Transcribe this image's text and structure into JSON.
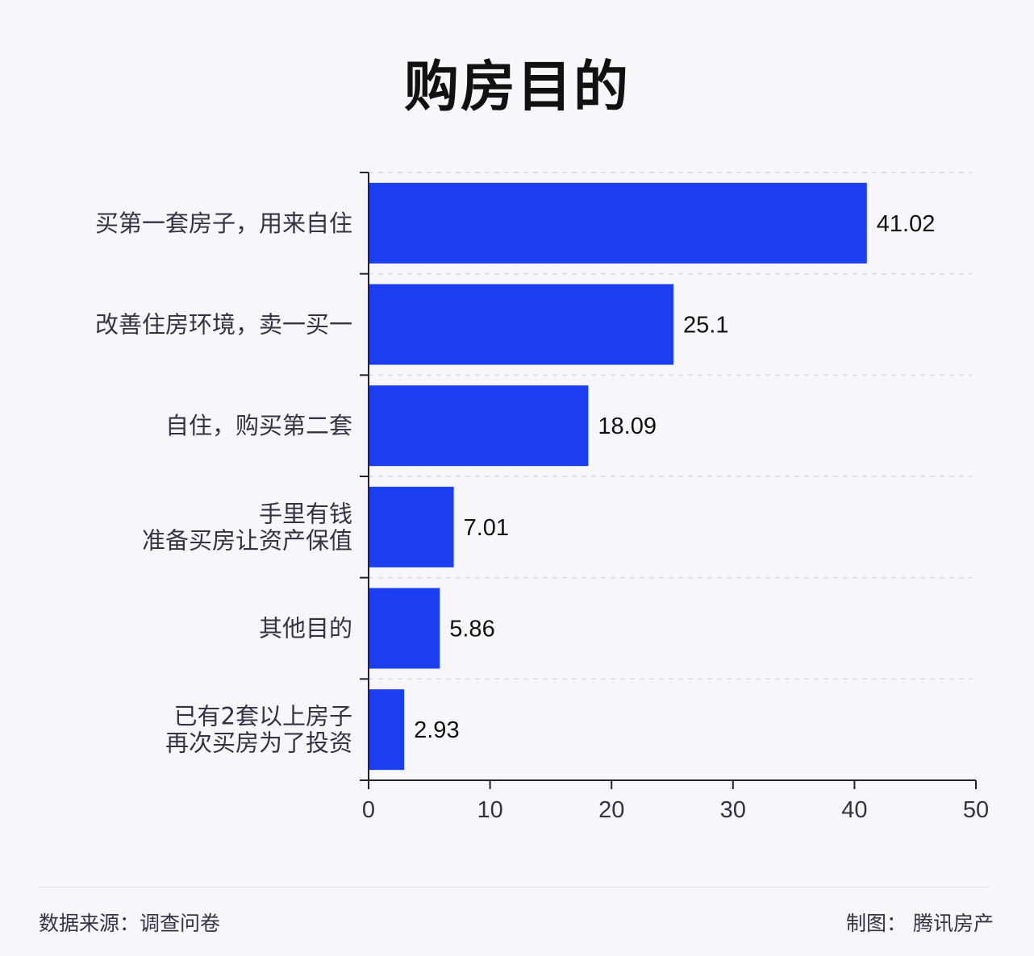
{
  "chart_data": {
    "type": "bar",
    "orientation": "horizontal",
    "title": "购房目的",
    "categories": [
      [
        "买第一套房子，用来自住"
      ],
      [
        "改善住房环境，卖一买一"
      ],
      [
        "自住，购买第二套"
      ],
      [
        "手里有钱",
        "准备买房让资产保值"
      ],
      [
        "其他目的"
      ],
      [
        "已有2套以上房子",
        "再次买房为了投资"
      ]
    ],
    "values": [
      41.02,
      25.1,
      18.09,
      7.01,
      5.86,
      2.93
    ],
    "value_labels": [
      "41.02",
      "25.1",
      "18.09",
      "7.01",
      "5.86",
      "2.93"
    ],
    "xlim": [
      0,
      50
    ],
    "xticks": [
      0,
      10,
      20,
      30,
      40,
      50
    ],
    "grid": "horizontal dashed",
    "colors": {
      "bar": "#1a3ef0",
      "grid": "#d9d9e3",
      "axis": "#222233"
    }
  },
  "footer": {
    "source": "数据来源：调查问卷",
    "credit": "制图： 腾讯房产"
  }
}
